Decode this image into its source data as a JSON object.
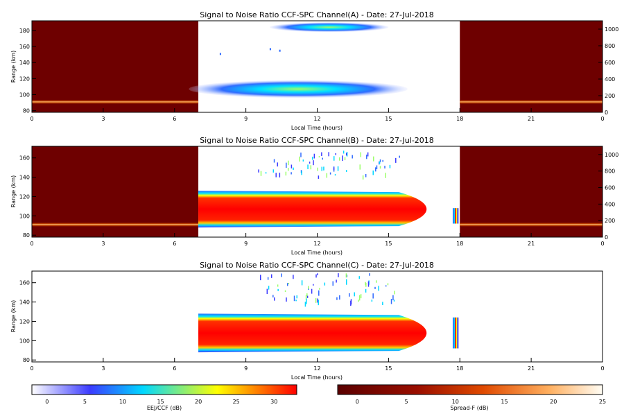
{
  "colors": {
    "background": "#ffffff",
    "night_fill": "#6e0000",
    "eej_scale": [
      "#ffffff",
      "#3b3bff",
      "#00d8ff",
      "#ffff00",
      "#ff0000"
    ],
    "spreadf_scale": [
      "#5a0000",
      "#c02000",
      "#ff7a10",
      "#ffd8a0",
      "#fffdf5"
    ]
  },
  "chart_data": [
    {
      "type": "heatmap",
      "title": "Signal to Noise Ratio CCF-SPC Channel(A) - Date: 27-Jul-2018",
      "xlabel": "Local Time (hours)",
      "ylabel": "Range (km)",
      "x_ticks": [
        "0",
        "3",
        "6",
        "9",
        "12",
        "15",
        "18",
        "21",
        "0"
      ],
      "y_ticks": [
        "80",
        "100",
        "120",
        "140",
        "160",
        "180"
      ],
      "right_ticks": [
        "0",
        "200",
        "400",
        "600",
        "800",
        "1000"
      ],
      "xlim": [
        0,
        24
      ],
      "ylim": [
        78,
        192
      ],
      "right_lim": [
        0,
        1100
      ],
      "night_intervals": [
        [
          0,
          7
        ],
        [
          18,
          24
        ]
      ],
      "night_band_range_km": 91,
      "blobs": [
        {
          "center_hour": 11.2,
          "center_km": 107,
          "width_hours": 9.2,
          "height_km": 22,
          "peak_db": 13
        },
        {
          "center_hour": 12.5,
          "center_km": 184,
          "width_hours": 5.0,
          "height_km": 12,
          "peak_db": 11
        }
      ],
      "speckles": [
        {
          "hour": 7.9,
          "km": 152
        },
        {
          "hour": 10.0,
          "km": 158
        },
        {
          "hour": 10.4,
          "km": 156
        }
      ]
    },
    {
      "type": "heatmap",
      "title": "Signal to Noise Ratio CCF-SPC Channel(B) - Date: 27-Jul-2018",
      "xlabel": "Local Time (hours)",
      "ylabel": "Range (km)",
      "x_ticks": [
        "0",
        "3",
        "6",
        "9",
        "12",
        "15",
        "18",
        "21",
        "0"
      ],
      "y_ticks": [
        "80",
        "100",
        "120",
        "140",
        "160"
      ],
      "right_ticks": [
        "0",
        "200",
        "400",
        "600",
        "800",
        "1000"
      ],
      "xlim": [
        0,
        24
      ],
      "ylim": [
        78,
        172
      ],
      "right_lim": [
        0,
        1100
      ],
      "night_intervals": [
        [
          0,
          7
        ],
        [
          18,
          24
        ]
      ],
      "night_band_range_km": 91,
      "eej_layer": {
        "start_hour": 7,
        "end_hour": 16.6,
        "bottom_km": 88,
        "top_km": 126,
        "peak_db": 32
      },
      "spread_f": {
        "hour_range": [
          9.5,
          15.5
        ],
        "km_range": [
          140,
          168
        ]
      },
      "late_echo": {
        "hour": 17.7,
        "km_range": [
          90,
          110
        ]
      }
    },
    {
      "type": "heatmap",
      "title": "Signal to Noise Ratio CCF-SPC Channel(C) - Date: 27-Jul-2018",
      "xlabel": "Local Time (hours)",
      "ylabel": "Range (km)",
      "x_ticks": [
        "0",
        "3",
        "6",
        "9",
        "12",
        "15",
        "18",
        "21",
        "0"
      ],
      "y_ticks": [
        "80",
        "100",
        "120",
        "140",
        "160"
      ],
      "xlim": [
        0,
        24
      ],
      "ylim": [
        78,
        172
      ],
      "eej_layer": {
        "start_hour": 7,
        "end_hour": 16.6,
        "bottom_km": 88,
        "top_km": 128,
        "peak_db": 32
      },
      "spread_f": {
        "hour_range": [
          9.5,
          15.5
        ],
        "km_range": [
          140,
          170
        ]
      },
      "late_echo": {
        "hour": 17.7,
        "km_range": [
          88,
          128
        ]
      }
    }
  ],
  "colorbars": [
    {
      "label": "EEJ/CCF (dB)",
      "ticks": [
        "0",
        "5",
        "10",
        "15",
        "20",
        "25",
        "30"
      ],
      "range": [
        -2,
        33
      ]
    },
    {
      "label": "Spread-F (dB)",
      "ticks": [
        "0",
        "5",
        "10",
        "15",
        "20",
        "25"
      ],
      "range": [
        -2,
        25
      ]
    }
  ]
}
